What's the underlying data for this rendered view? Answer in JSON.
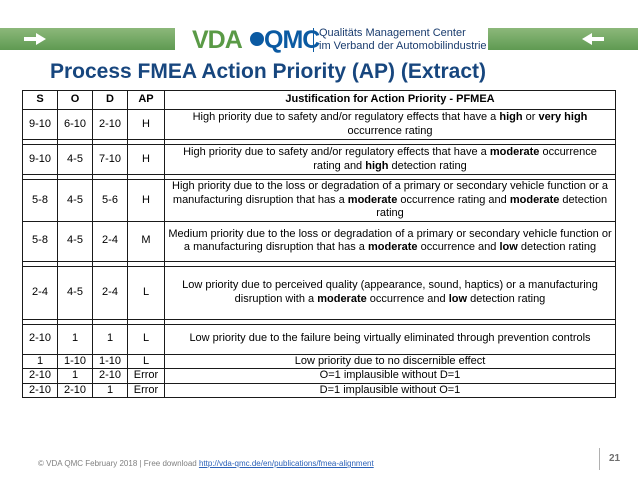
{
  "header": {
    "logo_vda": "VDA",
    "logo_qmc": "QMC",
    "logo_line1": "Qualitäts Management Center",
    "logo_line2": "im Verband der Automobilindustrie",
    "brand_green": "#5a9a46",
    "brand_blue": "#0b5aa2"
  },
  "title": "Process FMEA Action Priority (AP) (Extract)",
  "table": {
    "headers": [
      "S",
      "O",
      "D",
      "AP",
      "Justification for Action Priority - PFMEA"
    ],
    "groups": [
      [
        {
          "s": "9-10",
          "o": "6-10",
          "d": "2-10",
          "ap": "H",
          "justification": [
            {
              "t": "High priority due to safety and/or regulatory effects that have a "
            },
            {
              "t": "high",
              "b": true
            },
            {
              "t": " or "
            },
            {
              "t": "very high",
              "b": true
            },
            {
              "t": " occurrence rating"
            }
          ]
        }
      ],
      [
        {
          "s": "9-10",
          "o": "4-5",
          "d": "7-10",
          "ap": "H",
          "justification": [
            {
              "t": "High priority due to safety and/or regulatory effects that have a "
            },
            {
              "t": "moderate",
              "b": true
            },
            {
              "t": " occurrence rating and "
            },
            {
              "t": "high",
              "b": true
            },
            {
              "t": " detection rating"
            }
          ]
        }
      ],
      [
        {
          "s": "5-8",
          "o": "4-5",
          "d": "5-6",
          "ap": "H",
          "justification": [
            {
              "t": "High priority due to the loss or degradation of a primary or secondary vehicle function or a manufacturing disruption that has a "
            },
            {
              "t": "moderate",
              "b": true
            },
            {
              "t": " occurrence rating and "
            },
            {
              "t": "moderate",
              "b": true
            },
            {
              "t": " detection rating"
            }
          ]
        },
        {
          "s": "5-8",
          "o": "4-5",
          "d": "2-4",
          "ap": "M",
          "justification": [
            {
              "t": "Medium priority due to the loss or degradation of a primary or secondary vehicle function or a manufacturing disruption that has a "
            },
            {
              "t": "moderate",
              "b": true
            },
            {
              "t": " occurrence and "
            },
            {
              "t": "low",
              "b": true
            },
            {
              "t": " detection rating"
            }
          ]
        }
      ],
      [
        {
          "s": "2-4",
          "o": "4-5",
          "d": "2-4",
          "ap": "L",
          "justification": [
            {
              "t": "Low priority due to perceived quality (appearance, sound, haptics) or a manufacturing disruption with a "
            },
            {
              "t": "moderate",
              "b": true
            },
            {
              "t": " occurrence and "
            },
            {
              "t": "low",
              "b": true
            },
            {
              "t": " detection rating"
            }
          ]
        }
      ],
      [
        {
          "s": "2-10",
          "o": "1",
          "d": "1",
          "ap": "L",
          "justification": [
            {
              "t": "Low priority due to the failure being virtually eliminated through prevention controls"
            }
          ]
        },
        {
          "s": "1",
          "o": "1-10",
          "d": "1-10",
          "ap": "L",
          "justification": [
            {
              "t": "Low priority due to no discernible effect"
            }
          ]
        },
        {
          "s": "2-10",
          "o": "1",
          "d": "2-10",
          "ap": "Error",
          "justification": [
            {
              "t": "O=1 implausible without D=1"
            }
          ]
        },
        {
          "s": "2-10",
          "o": "2-10",
          "d": "1",
          "ap": "Error",
          "justification": [
            {
              "t": "D=1 implausible without O=1"
            }
          ]
        }
      ]
    ]
  },
  "footer": {
    "text": "© VDA QMC February 2018 | Free download ",
    "link": "http://vda-qmc.de/en/publications/fmea-alignment",
    "page_number": "21"
  }
}
